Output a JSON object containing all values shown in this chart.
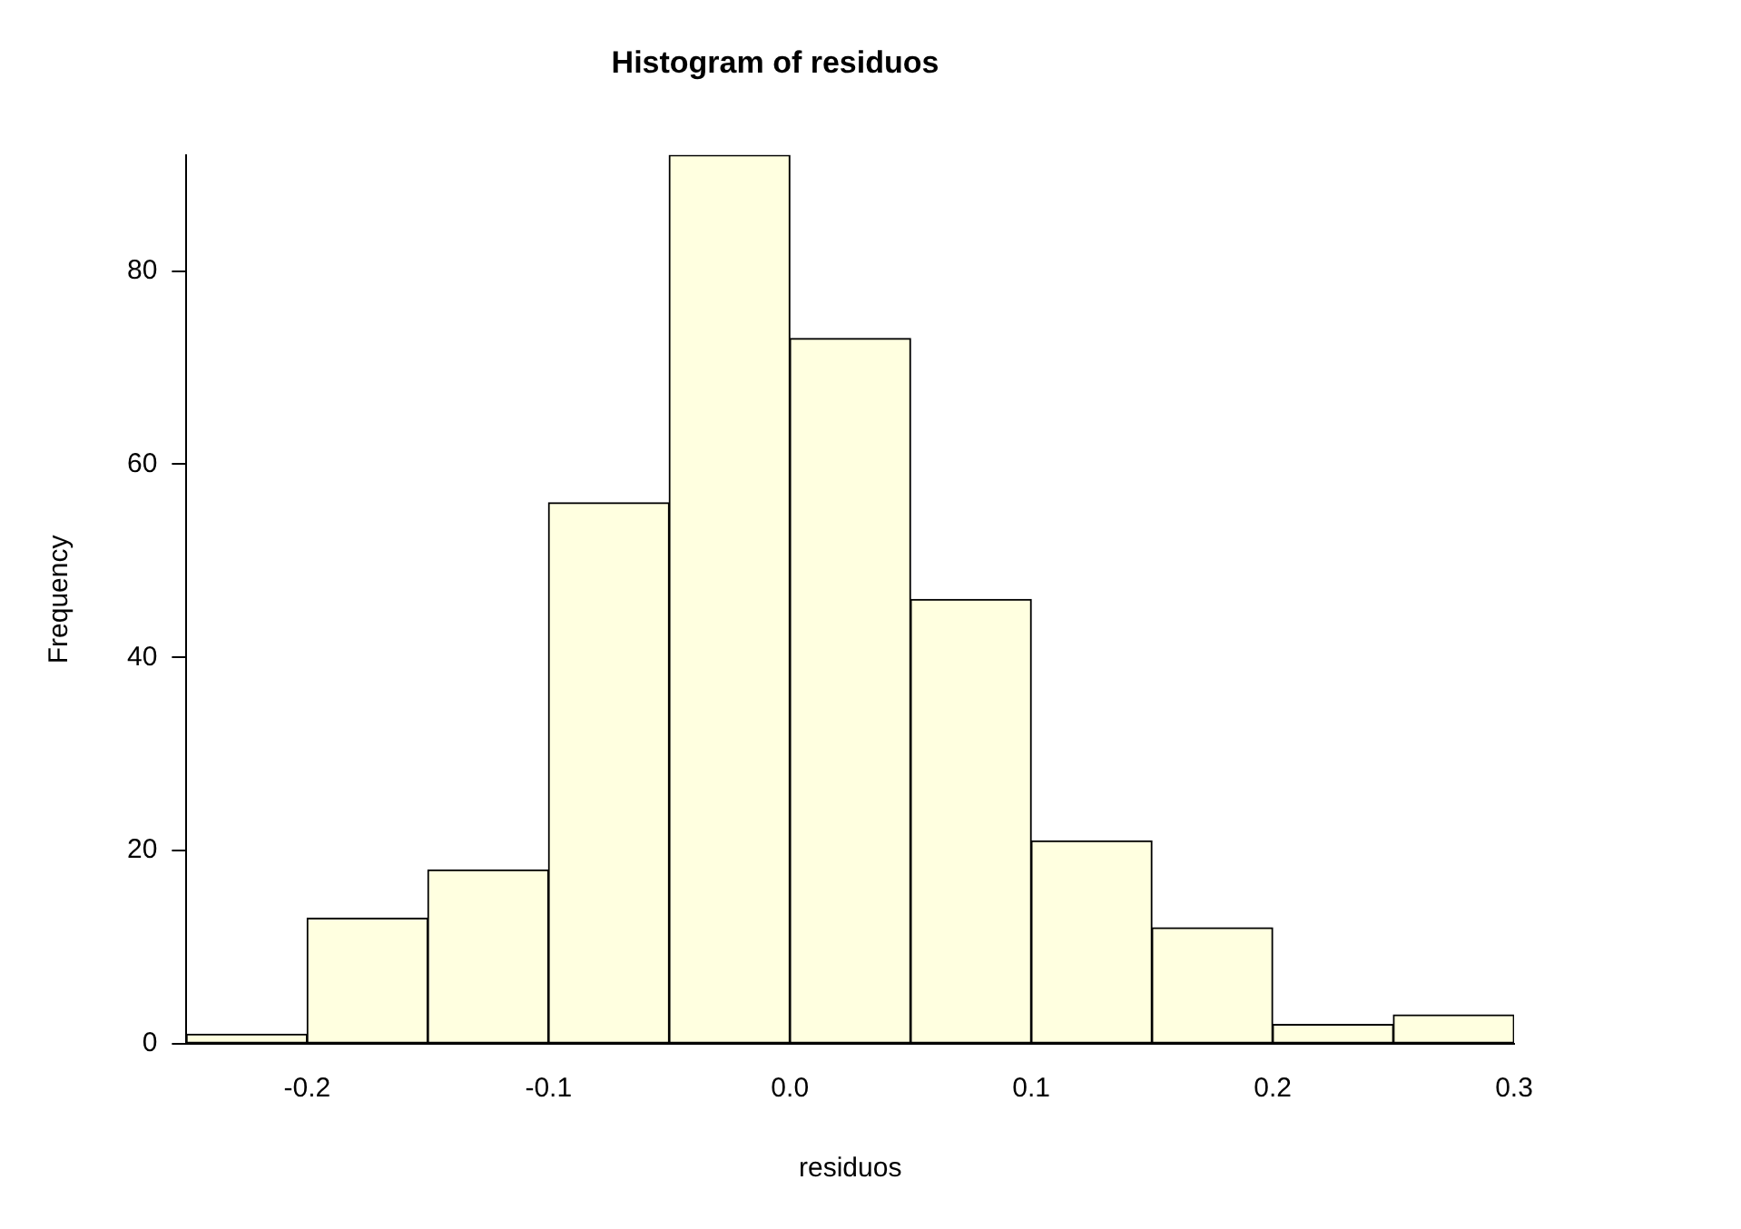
{
  "chart_data": {
    "type": "histogram",
    "title": "Histogram of residuos",
    "xlabel": "residuos",
    "ylabel": "Frequency",
    "bins": [
      -0.25,
      -0.2,
      -0.15,
      -0.1,
      -0.05,
      0,
      0.05,
      0.1,
      0.15,
      0.2,
      0.25,
      0.3
    ],
    "values": [
      1,
      13,
      18,
      56,
      92,
      73,
      46,
      21,
      12,
      2,
      3
    ],
    "color": "#ffffe0",
    "xlim": [
      -0.25,
      0.3
    ],
    "ylim": [
      0,
      92
    ],
    "xticks": [
      -0.2,
      -0.1,
      {
        "value": 0,
        "label": "0.0"
      },
      0.1,
      0.2,
      0.3
    ],
    "yticks": [
      0,
      20,
      40,
      60,
      80
    ]
  }
}
